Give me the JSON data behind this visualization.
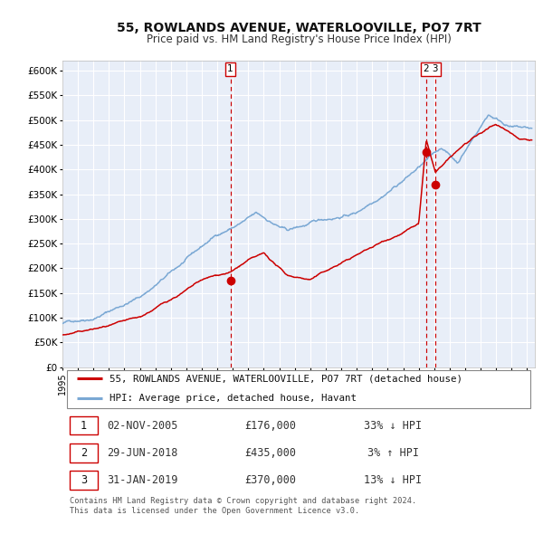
{
  "title": "55, ROWLANDS AVENUE, WATERLOOVILLE, PO7 7RT",
  "subtitle": "Price paid vs. HM Land Registry's House Price Index (HPI)",
  "ylim": [
    0,
    620000
  ],
  "yticks": [
    0,
    50000,
    100000,
    150000,
    200000,
    250000,
    300000,
    350000,
    400000,
    450000,
    500000,
    550000,
    600000
  ],
  "xlim_start": 1995.0,
  "xlim_end": 2025.5,
  "legend_line1": "55, ROWLANDS AVENUE, WATERLOOVILLE, PO7 7RT (detached house)",
  "legend_line2": "HPI: Average price, detached house, Havant",
  "red_line_color": "#cc0000",
  "blue_line_color": "#7aa8d4",
  "vline_color": "#cc0000",
  "transaction1_date": 2005.84,
  "transaction1_price": 176000,
  "transaction2_date": 2018.49,
  "transaction2_price": 435000,
  "transaction3_date": 2019.08,
  "transaction3_price": 370000,
  "table_rows": [
    {
      "num": "1",
      "date": "02-NOV-2005",
      "price": "£176,000",
      "change": "33% ↓ HPI"
    },
    {
      "num": "2",
      "date": "29-JUN-2018",
      "price": "£435,000",
      "change": "3% ↑ HPI"
    },
    {
      "num": "3",
      "date": "31-JAN-2019",
      "price": "£370,000",
      "change": "13% ↓ HPI"
    }
  ],
  "footer": "Contains HM Land Registry data © Crown copyright and database right 2024.\nThis data is licensed under the Open Government Licence v3.0.",
  "background_color": "#ffffff",
  "plot_bg_color": "#e8eef8"
}
